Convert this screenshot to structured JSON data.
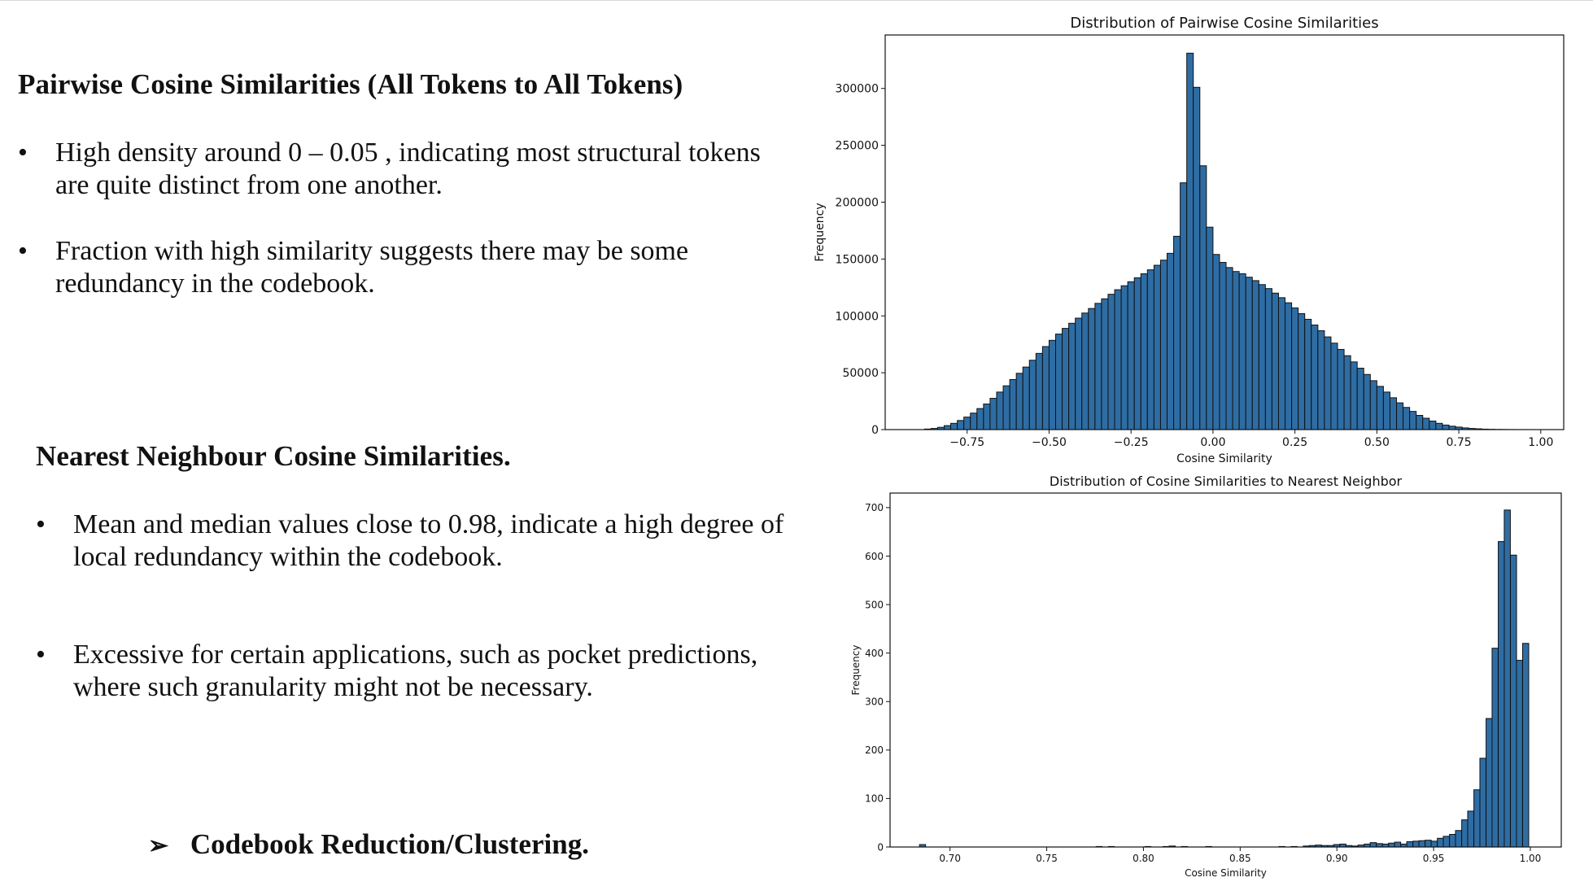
{
  "text_panel": {
    "section1": {
      "heading": "Pairwise Cosine Similarities (All Tokens to All Tokens)",
      "bullets": [
        {
          "line1": "High density around 0 – 0.05 , indicating most structural tokens",
          "line2": "are quite distinct from one another."
        },
        {
          "line1": "Fraction with high similarity suggests there may be some",
          "line2": "redundancy in the codebook."
        }
      ]
    },
    "section2": {
      "heading": "Nearest Neighbour Cosine Similarities.",
      "bullets": [
        {
          "line1": "Mean and median values close to 0.98, indicate a high degree of",
          "line2": "local redundancy within the codebook."
        },
        {
          "line1": "Excessive for certain applications, such as pocket predictions,",
          "line2": "where such granularity might not be necessary."
        }
      ]
    },
    "bullet_symbol": "•",
    "conclusion": {
      "symbol": "➢",
      "text": "Codebook Reduction/Clustering."
    }
  },
  "colors": {
    "bar_fill": "#2e6da4",
    "bar_edge": "#111111"
  },
  "chart_data": [
    {
      "type": "bar",
      "title": "Distribution of Pairwise Cosine Similarities",
      "xlabel": "Cosine Similarity",
      "ylabel": "Frequency",
      "xlim": [
        -1.0,
        1.07
      ],
      "ylim": [
        0,
        347000
      ],
      "bin_width": 0.02,
      "xticks": [
        -0.75,
        -0.5,
        -0.25,
        0.0,
        0.25,
        0.5,
        0.75,
        1.0
      ],
      "xtick_labels": [
        "−0.75",
        "−0.50",
        "−0.25",
        "0.00",
        "0.25",
        "0.50",
        "0.75",
        "1.00"
      ],
      "yticks": [
        0,
        50000,
        100000,
        150000,
        200000,
        250000,
        300000
      ],
      "ytick_labels": [
        "0",
        "50000",
        "100000",
        "150000",
        "200000",
        "250000",
        "300000"
      ],
      "x": [
        -0.87,
        -0.85,
        -0.83,
        -0.81,
        -0.79,
        -0.77,
        -0.75,
        -0.73,
        -0.71,
        -0.69,
        -0.67,
        -0.65,
        -0.63,
        -0.61,
        -0.59,
        -0.57,
        -0.55,
        -0.53,
        -0.51,
        -0.49,
        -0.47,
        -0.45,
        -0.43,
        -0.41,
        -0.39,
        -0.37,
        -0.35,
        -0.33,
        -0.31,
        -0.29,
        -0.27,
        -0.25,
        -0.23,
        -0.21,
        -0.19,
        -0.17,
        -0.15,
        -0.13,
        -0.11,
        -0.09,
        -0.07,
        -0.05,
        -0.03,
        -0.01,
        0.01,
        0.03,
        0.05,
        0.07,
        0.09,
        0.11,
        0.13,
        0.15,
        0.17,
        0.19,
        0.21,
        0.23,
        0.25,
        0.27,
        0.29,
        0.31,
        0.33,
        0.35,
        0.37,
        0.39,
        0.41,
        0.43,
        0.45,
        0.47,
        0.49,
        0.51,
        0.53,
        0.55,
        0.57,
        0.59,
        0.61,
        0.63,
        0.65,
        0.67,
        0.69,
        0.71,
        0.73,
        0.75,
        0.77,
        0.79,
        0.81,
        0.83,
        0.85,
        0.87,
        0.89,
        0.91,
        0.93,
        0.95
      ],
      "values": [
        500,
        1000,
        2000,
        3500,
        5500,
        8000,
        11000,
        14500,
        18500,
        22500,
        27500,
        33000,
        38500,
        44000,
        49500,
        55000,
        61000,
        67000,
        73000,
        78500,
        84000,
        89000,
        93500,
        98000,
        102500,
        106500,
        111000,
        115000,
        119000,
        123000,
        126500,
        130000,
        133500,
        137000,
        140500,
        144500,
        149000,
        155000,
        170000,
        217000,
        331000,
        301000,
        232000,
        178000,
        154000,
        147000,
        142500,
        139000,
        137000,
        134000,
        131000,
        127500,
        124000,
        120000,
        116000,
        111500,
        107000,
        102000,
        97000,
        92000,
        87000,
        81500,
        76000,
        70500,
        65000,
        59500,
        54000,
        48500,
        43000,
        38000,
        33000,
        28000,
        23500,
        19500,
        16000,
        12500,
        10000,
        7500,
        5500,
        4000,
        3000,
        2200,
        1500,
        1000,
        700,
        400,
        250,
        150,
        100,
        50,
        25,
        10
      ]
    },
    {
      "type": "bar",
      "title": "Distribution of Cosine Similarities to Nearest Neighbor",
      "xlabel": "Cosine Similarity",
      "ylabel": "Frequency",
      "xlim": [
        0.669,
        1.016
      ],
      "ylim": [
        0,
        730
      ],
      "bin_width": 0.00315,
      "xticks": [
        0.7,
        0.75,
        0.8,
        0.85,
        0.9,
        0.95,
        1.0
      ],
      "xtick_labels": [
        "0.70",
        "0.75",
        "0.80",
        "0.85",
        "0.90",
        "0.95",
        "1.00"
      ],
      "yticks": [
        0,
        100,
        200,
        300,
        400,
        500,
        600,
        700
      ],
      "ytick_labels": [
        "0",
        "100",
        "200",
        "300",
        "400",
        "500",
        "600",
        "700"
      ],
      "x": [
        0.6858,
        0.7771,
        0.7834,
        0.8023,
        0.8117,
        0.8149,
        0.8212,
        0.8338,
        0.8716,
        0.8779,
        0.8842,
        0.8873,
        0.8905,
        0.8936,
        0.8968,
        0.8999,
        0.9031,
        0.9062,
        0.9094,
        0.9125,
        0.9157,
        0.9188,
        0.922,
        0.9251,
        0.9283,
        0.9314,
        0.9346,
        0.9377,
        0.9409,
        0.944,
        0.9472,
        0.9503,
        0.9535,
        0.9566,
        0.9598,
        0.9629,
        0.9661,
        0.9692,
        0.9724,
        0.9755,
        0.9787,
        0.9818,
        0.985,
        0.9881,
        0.9913,
        0.9944,
        0.9976
      ],
      "values": [
        5,
        1,
        1,
        1,
        1,
        2,
        1,
        1,
        1,
        1,
        2,
        3,
        4,
        3,
        3,
        5,
        6,
        3,
        2,
        4,
        6,
        9,
        7,
        6,
        8,
        10,
        6,
        11,
        12,
        13,
        14,
        12,
        18,
        22,
        26,
        34,
        56,
        74,
        118,
        183,
        265,
        410,
        630,
        695,
        602,
        385,
        420
      ]
    }
  ]
}
